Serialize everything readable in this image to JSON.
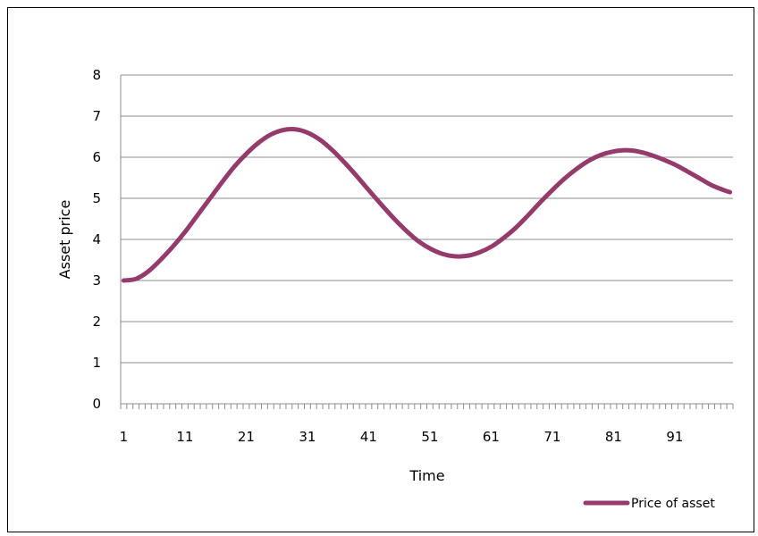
{
  "chart_data": {
    "type": "line",
    "title": "",
    "xlabel": "Time",
    "ylabel": "Asset price",
    "ylim": [
      0,
      8
    ],
    "yticks": [
      0,
      1,
      2,
      3,
      4,
      5,
      6,
      7,
      8
    ],
    "xlim": [
      1,
      100
    ],
    "xtick_labels": [
      1,
      11,
      21,
      31,
      41,
      51,
      61,
      71,
      81,
      91
    ],
    "grid": "horizontal",
    "legend": {
      "position": "bottom-right"
    },
    "series": [
      {
        "name": "Price of asset",
        "color": "#953B6B",
        "x": [
          1,
          3,
          5,
          7,
          9,
          11,
          13,
          15,
          17,
          19,
          21,
          23,
          25,
          27,
          29,
          31,
          33,
          35,
          37,
          39,
          41,
          43,
          45,
          47,
          49,
          51,
          53,
          55,
          57,
          59,
          61,
          63,
          65,
          67,
          69,
          71,
          73,
          75,
          77,
          79,
          81,
          83,
          85,
          87,
          89,
          91,
          93,
          95,
          97,
          99,
          100
        ],
        "values": [
          3.0,
          3.04,
          3.22,
          3.5,
          3.82,
          4.18,
          4.58,
          4.98,
          5.38,
          5.76,
          6.08,
          6.35,
          6.55,
          6.66,
          6.68,
          6.6,
          6.43,
          6.18,
          5.88,
          5.55,
          5.2,
          4.86,
          4.53,
          4.23,
          3.97,
          3.78,
          3.65,
          3.59,
          3.6,
          3.68,
          3.82,
          4.03,
          4.28,
          4.58,
          4.9,
          5.2,
          5.48,
          5.72,
          5.92,
          6.06,
          6.14,
          6.17,
          6.14,
          6.06,
          5.95,
          5.82,
          5.66,
          5.49,
          5.32,
          5.2,
          5.15
        ]
      }
    ]
  }
}
